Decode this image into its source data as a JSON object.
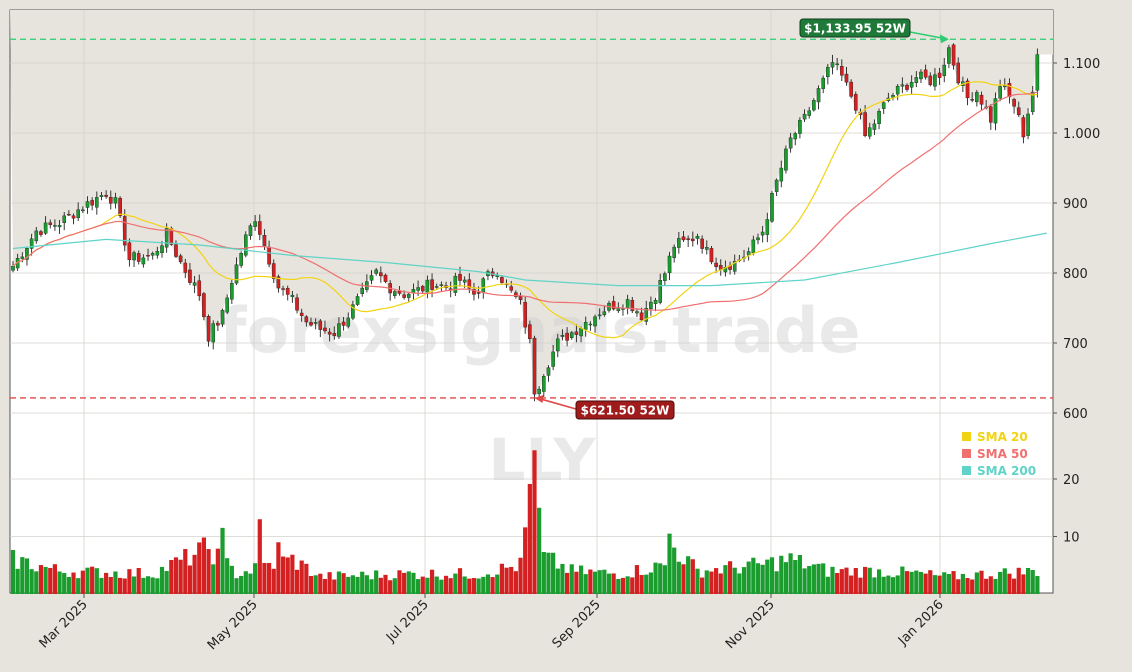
{
  "chart_data": {
    "type": "candlestick",
    "symbol": "LLY",
    "watermark": "forexsignals.trade",
    "x_tick_labels": [
      "Mar 2025",
      "May 2025",
      "Jul 2025",
      "Sep 2025",
      "Nov 2025",
      "Jan 2026"
    ],
    "price_axis": {
      "ticks": [
        600,
        700,
        800,
        900,
        "1.000",
        "1.100"
      ],
      "range": [
        560,
        1175
      ]
    },
    "volume_axis": {
      "ticks": [
        10,
        20
      ],
      "range": [
        1,
        30
      ]
    },
    "high_52w": {
      "label": "$1,133.95 52W",
      "value": 1133.95,
      "color": "#2ecc71"
    },
    "low_52w": {
      "label": "$621.50 52W",
      "value": 621.5,
      "color": "#e04848"
    },
    "legend": [
      {
        "name": "SMA 20",
        "color": "#f2d313"
      },
      {
        "name": "SMA 50",
        "color": "#f07070"
      },
      {
        "name": "SMA 200",
        "color": "#5fd3c8"
      }
    ],
    "price_anchors": [
      [
        0,
        810
      ],
      [
        5,
        860
      ],
      [
        10,
        872
      ],
      [
        15,
        895
      ],
      [
        20,
        915
      ],
      [
        22,
        900
      ],
      [
        25,
        820
      ],
      [
        30,
        825
      ],
      [
        33,
        855
      ],
      [
        36,
        815
      ],
      [
        40,
        770
      ],
      [
        42,
        710
      ],
      [
        45,
        740
      ],
      [
        47,
        790
      ],
      [
        50,
        850
      ],
      [
        52,
        880
      ],
      [
        54,
        840
      ],
      [
        57,
        780
      ],
      [
        60,
        760
      ],
      [
        63,
        730
      ],
      [
        66,
        720
      ],
      [
        69,
        715
      ],
      [
        72,
        740
      ],
      [
        75,
        770
      ],
      [
        78,
        800
      ],
      [
        81,
        780
      ],
      [
        84,
        770
      ],
      [
        87,
        775
      ],
      [
        90,
        785
      ],
      [
        93,
        780
      ],
      [
        96,
        790
      ],
      [
        99,
        770
      ],
      [
        102,
        795
      ],
      [
        104,
        805
      ],
      [
        106,
        780
      ],
      [
        109,
        755
      ],
      [
        111,
        700
      ],
      [
        112,
        625
      ],
      [
        114,
        660
      ],
      [
        117,
        700
      ],
      [
        120,
        715
      ],
      [
        123,
        730
      ],
      [
        126,
        745
      ],
      [
        129,
        755
      ],
      [
        132,
        760
      ],
      [
        135,
        740
      ],
      [
        138,
        770
      ],
      [
        140,
        800
      ],
      [
        142,
        840
      ],
      [
        145,
        845
      ],
      [
        147,
        855
      ],
      [
        149,
        830
      ],
      [
        152,
        810
      ],
      [
        155,
        815
      ],
      [
        158,
        830
      ],
      [
        161,
        860
      ],
      [
        164,
        930
      ],
      [
        167,
        990
      ],
      [
        170,
        1020
      ],
      [
        173,
        1060
      ],
      [
        176,
        1100
      ],
      [
        178,
        1080
      ],
      [
        181,
        1040
      ],
      [
        183,
        995
      ],
      [
        185,
        1015
      ],
      [
        188,
        1050
      ],
      [
        191,
        1065
      ],
      [
        194,
        1080
      ],
      [
        197,
        1075
      ],
      [
        199,
        1085
      ],
      [
        201,
        1120
      ],
      [
        203,
        1080
      ],
      [
        205,
        1050
      ],
      [
        207,
        1060
      ],
      [
        210,
        1020
      ],
      [
        212,
        1070
      ],
      [
        215,
        1040
      ],
      [
        217,
        1000
      ],
      [
        219,
        1060
      ],
      [
        220,
        1105
      ]
    ],
    "volume_anchors": [
      [
        0,
        6
      ],
      [
        10,
        4
      ],
      [
        30,
        3.5
      ],
      [
        42,
        8
      ],
      [
        48,
        3.5
      ],
      [
        55,
        5
      ],
      [
        60,
        6
      ],
      [
        66,
        3
      ],
      [
        85,
        3.5
      ],
      [
        100,
        3.5
      ],
      [
        109,
        5
      ],
      [
        110,
        11
      ],
      [
        112,
        22
      ],
      [
        113,
        7
      ],
      [
        115,
        6
      ],
      [
        120,
        4
      ],
      [
        130,
        3.5
      ],
      [
        140,
        5
      ],
      [
        142,
        8
      ],
      [
        147,
        4
      ],
      [
        160,
        5
      ],
      [
        167,
        6
      ],
      [
        175,
        4
      ],
      [
        185,
        4
      ],
      [
        195,
        3.5
      ],
      [
        200,
        3
      ],
      [
        220,
        4
      ]
    ],
    "volume_spikes": [
      [
        45,
        11.5
      ],
      [
        53,
        13
      ],
      [
        57,
        9
      ],
      [
        112,
        25
      ],
      [
        113,
        15
      ],
      [
        141,
        10.5
      ]
    ],
    "sma200": [
      [
        0,
        835
      ],
      [
        20,
        848
      ],
      [
        40,
        840
      ],
      [
        60,
        825
      ],
      [
        80,
        815
      ],
      [
        100,
        802
      ],
      [
        110,
        790
      ],
      [
        130,
        782
      ],
      [
        150,
        782
      ],
      [
        170,
        790
      ],
      [
        190,
        815
      ],
      [
        210,
        842
      ],
      [
        222,
        857
      ]
    ]
  }
}
